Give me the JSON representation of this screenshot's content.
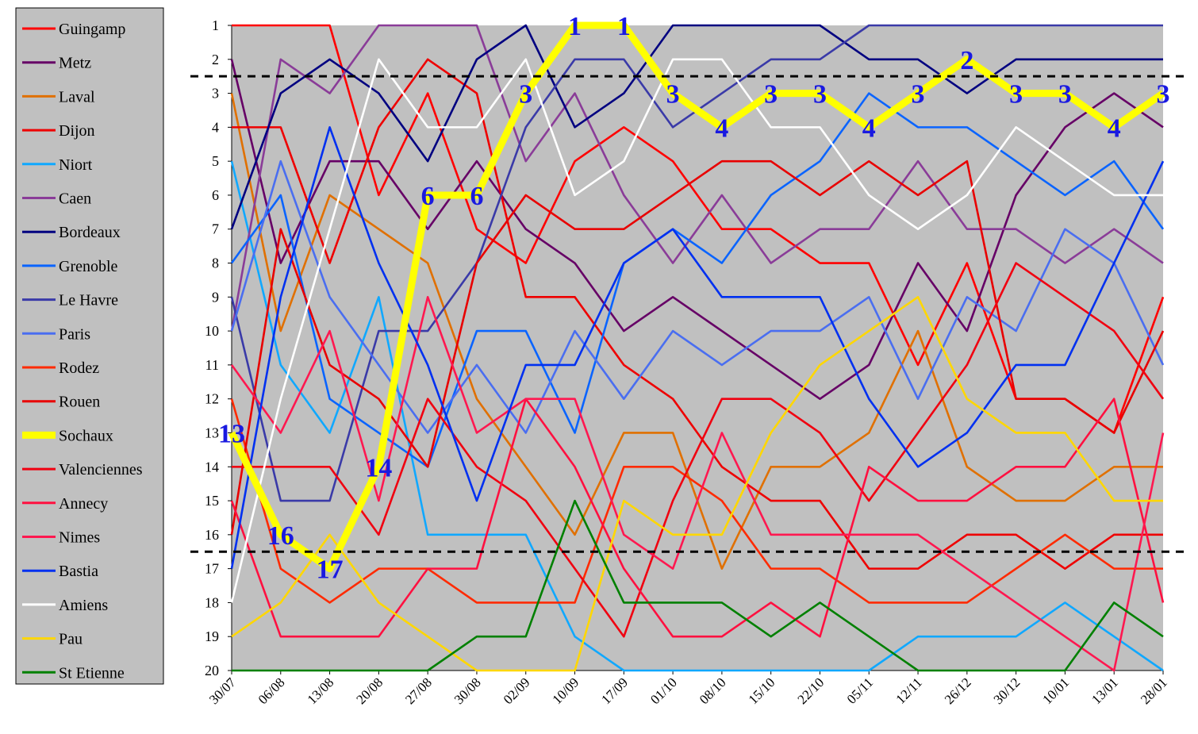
{
  "chart_data": {
    "type": "line",
    "categories": [
      "30/07",
      "06/08",
      "13/08",
      "20/08",
      "27/08",
      "30/08",
      "02/09",
      "10/09",
      "17/09",
      "01/10",
      "08/10",
      "15/10",
      "22/10",
      "05/11",
      "12/11",
      "26/12",
      "30/12",
      "10/01",
      "13/01",
      "28/01"
    ],
    "ylim": [
      1,
      20
    ],
    "yticks": [
      1,
      2,
      3,
      4,
      5,
      6,
      7,
      8,
      9,
      10,
      11,
      12,
      13,
      14,
      15,
      16,
      17,
      18,
      19,
      20
    ],
    "y_inverted": true,
    "reference_lines": [
      2.5,
      16.5
    ],
    "series": [
      {
        "name": "Guingamp",
        "color": "#ff0000",
        "values": [
          1,
          1,
          1,
          6,
          3,
          7,
          8,
          5,
          4,
          5,
          7,
          7,
          8,
          8,
          11,
          8,
          12,
          12,
          13,
          9
        ]
      },
      {
        "name": "Metz",
        "color": "#660066",
        "values": [
          2,
          8,
          5,
          5,
          7,
          5,
          7,
          8,
          10,
          9,
          10,
          11,
          12,
          11,
          8,
          10,
          6,
          4,
          3,
          4
        ]
      },
      {
        "name": "Laval",
        "color": "#e07000",
        "values": [
          3,
          10,
          6,
          7,
          8,
          12,
          14,
          16,
          13,
          13,
          17,
          14,
          14,
          13,
          10,
          14,
          15,
          15,
          14,
          14
        ]
      },
      {
        "name": "Dijon",
        "color": "#ee0000",
        "values": [
          4,
          4,
          8,
          4,
          2,
          3,
          9,
          9,
          11,
          12,
          14,
          15,
          15,
          17,
          17,
          16,
          16,
          17,
          16,
          16
        ]
      },
      {
        "name": "Niort",
        "color": "#10a8ff",
        "values": [
          5,
          11,
          13,
          9,
          16,
          16,
          16,
          19,
          20,
          20,
          20,
          20,
          20,
          20,
          19,
          19,
          19,
          18,
          19,
          20
        ]
      },
      {
        "name": "Caen",
        "color": "#8a3c98",
        "values": [
          10,
          2,
          3,
          1,
          1,
          1,
          5,
          3,
          6,
          8,
          6,
          8,
          7,
          7,
          5,
          7,
          7,
          8,
          7,
          8
        ]
      },
      {
        "name": "Bordeaux",
        "color": "#000080",
        "values": [
          7,
          3,
          2,
          3,
          5,
          2,
          1,
          4,
          3,
          1,
          1,
          1,
          1,
          2,
          2,
          3,
          2,
          2,
          2,
          2
        ]
      },
      {
        "name": "Grenoble",
        "color": "#0a64ff",
        "values": [
          8,
          6,
          12,
          13,
          14,
          10,
          10,
          13,
          8,
          7,
          8,
          6,
          5,
          3,
          4,
          4,
          5,
          6,
          5,
          7
        ]
      },
      {
        "name": "Le Havre",
        "color": "#3a3aa8",
        "values": [
          9,
          15,
          15,
          10,
          10,
          8,
          4,
          2,
          2,
          4,
          3,
          2,
          2,
          1,
          1,
          1,
          1,
          1,
          1,
          1
        ]
      },
      {
        "name": "Paris",
        "color": "#4a6ef0",
        "values": [
          10,
          5,
          9,
          11,
          13,
          11,
          13,
          10,
          12,
          10,
          11,
          10,
          10,
          9,
          12,
          9,
          10,
          7,
          8,
          11
        ]
      },
      {
        "name": "Rodez",
        "color": "#ff2a00",
        "values": [
          12,
          17,
          18,
          17,
          17,
          18,
          18,
          18,
          14,
          14,
          15,
          17,
          17,
          18,
          18,
          18,
          17,
          16,
          17,
          17
        ]
      },
      {
        "name": "Rouen",
        "color": "#e80000",
        "values": [
          16,
          7,
          11,
          12,
          14,
          8,
          6,
          7,
          7,
          6,
          5,
          5,
          6,
          5,
          6,
          5,
          12,
          12,
          13,
          10
        ]
      },
      {
        "name": "Sochaux",
        "color": "#ffff00",
        "highlight": true,
        "values": [
          13,
          16,
          17,
          14,
          6,
          6,
          3,
          1,
          1,
          3,
          4,
          3,
          3,
          4,
          3,
          2,
          3,
          3,
          4,
          3
        ]
      },
      {
        "name": "Valenciennes",
        "color": "#f00010",
        "values": [
          14,
          14,
          14,
          16,
          12,
          14,
          15,
          17,
          19,
          15,
          12,
          12,
          13,
          15,
          13,
          11,
          8,
          9,
          10,
          12
        ]
      },
      {
        "name": "Annecy",
        "color": "#ff1040",
        "values": [
          15,
          19,
          19,
          19,
          17,
          17,
          12,
          14,
          17,
          19,
          19,
          18,
          19,
          14,
          15,
          15,
          14,
          14,
          12,
          18
        ]
      },
      {
        "name": "Nimes",
        "color": "#ff1850",
        "values": [
          11,
          13,
          10,
          15,
          9,
          13,
          12,
          12,
          16,
          17,
          13,
          16,
          16,
          16,
          16,
          17,
          18,
          19,
          20,
          13
        ]
      },
      {
        "name": "Bastia",
        "color": "#0030f0",
        "values": [
          17,
          9,
          4,
          8,
          11,
          15,
          11,
          11,
          8,
          7,
          9,
          9,
          9,
          12,
          14,
          13,
          11,
          11,
          8,
          5
        ]
      },
      {
        "name": "Amiens",
        "color": "#ffffff",
        "values": [
          18,
          12,
          7,
          2,
          4,
          4,
          2,
          6,
          5,
          2,
          2,
          4,
          4,
          6,
          7,
          6,
          4,
          5,
          6,
          6
        ]
      },
      {
        "name": "Pau",
        "color": "#ffd700",
        "values": [
          19,
          18,
          16,
          18,
          19,
          20,
          20,
          20,
          15,
          16,
          16,
          13,
          11,
          10,
          9,
          12,
          13,
          13,
          15,
          15
        ]
      },
      {
        "name": "St Etienne",
        "color": "#008000",
        "values": [
          20,
          20,
          20,
          20,
          20,
          19,
          19,
          15,
          18,
          18,
          18,
          19,
          18,
          19,
          20,
          20,
          20,
          20,
          18,
          19
        ]
      }
    ]
  }
}
